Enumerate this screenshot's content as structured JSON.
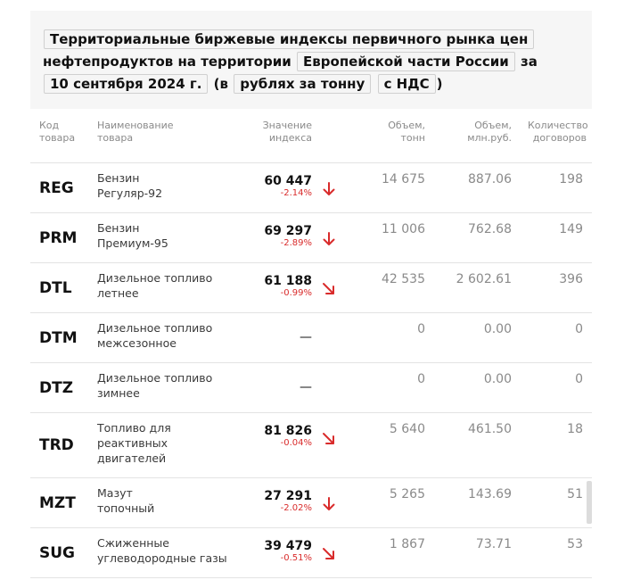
{
  "title": {
    "part1": "Территориальные биржевые индексы первичного рынка цен",
    "part2": "нефтепродуктов на территории",
    "region": "Европейской части России",
    "word_za": "за",
    "date": "10 сентября 2024 г.",
    "open_paren": "(в",
    "unit": "рублях за тонну",
    "vat": "с НДС",
    "close_paren": ")"
  },
  "columns": {
    "code": [
      "Код",
      "товара"
    ],
    "name": [
      "Наименование",
      "товара"
    ],
    "value": [
      "Значение",
      "индекса"
    ],
    "volume": [
      "Объем,",
      "тонн"
    ],
    "volume_rub": [
      "Объем,",
      "млн.руб."
    ],
    "contracts": [
      "Количество",
      "договоров"
    ]
  },
  "rows": [
    {
      "code": "REG",
      "name": [
        "Бензин",
        "Регуляр-92"
      ],
      "value": "60 447",
      "change": "-2.14%",
      "trend": "down",
      "volume": "14 675",
      "volume_rub": "887.06",
      "contracts": "198"
    },
    {
      "code": "PRM",
      "name": [
        "Бензин",
        "Премиум-95"
      ],
      "value": "69 297",
      "change": "-2.89%",
      "trend": "down",
      "volume": "11 006",
      "volume_rub": "762.68",
      "contracts": "149"
    },
    {
      "code": "DTL",
      "name": [
        "Дизельное топливо",
        "летнее"
      ],
      "value": "61 188",
      "change": "-0.99%",
      "trend": "down-right",
      "volume": "42 535",
      "volume_rub": "2 602.61",
      "contracts": "396"
    },
    {
      "code": "DTM",
      "name": [
        "Дизельное топливо",
        "межсезонное"
      ],
      "value": "—",
      "change": "",
      "trend": "none",
      "volume": "0",
      "volume_rub": "0.00",
      "contracts": "0"
    },
    {
      "code": "DTZ",
      "name": [
        "Дизельное топливо",
        "зимнее"
      ],
      "value": "—",
      "change": "",
      "trend": "none",
      "volume": "0",
      "volume_rub": "0.00",
      "contracts": "0"
    },
    {
      "code": "TRD",
      "name": [
        "Топливо для",
        "реактивных",
        "двигателей"
      ],
      "value": "81 826",
      "change": "-0.04%",
      "trend": "down-right",
      "volume": "5 640",
      "volume_rub": "461.50",
      "contracts": "18"
    },
    {
      "code": "MZT",
      "name": [
        "Мазут",
        "топочный"
      ],
      "value": "27 291",
      "change": "-2.02%",
      "trend": "down",
      "volume": "5 265",
      "volume_rub": "143.69",
      "contracts": "51"
    },
    {
      "code": "SUG",
      "name": [
        "Сжиженные",
        "углеводородные газы"
      ],
      "value": "39 479",
      "change": "-0.51%",
      "trend": "down-right",
      "volume": "1 867",
      "volume_rub": "73.71",
      "contracts": "53"
    }
  ],
  "colors": {
    "negative": "#d92b2b",
    "muted": "#8a8a8a",
    "border": "#e3e3e3"
  }
}
